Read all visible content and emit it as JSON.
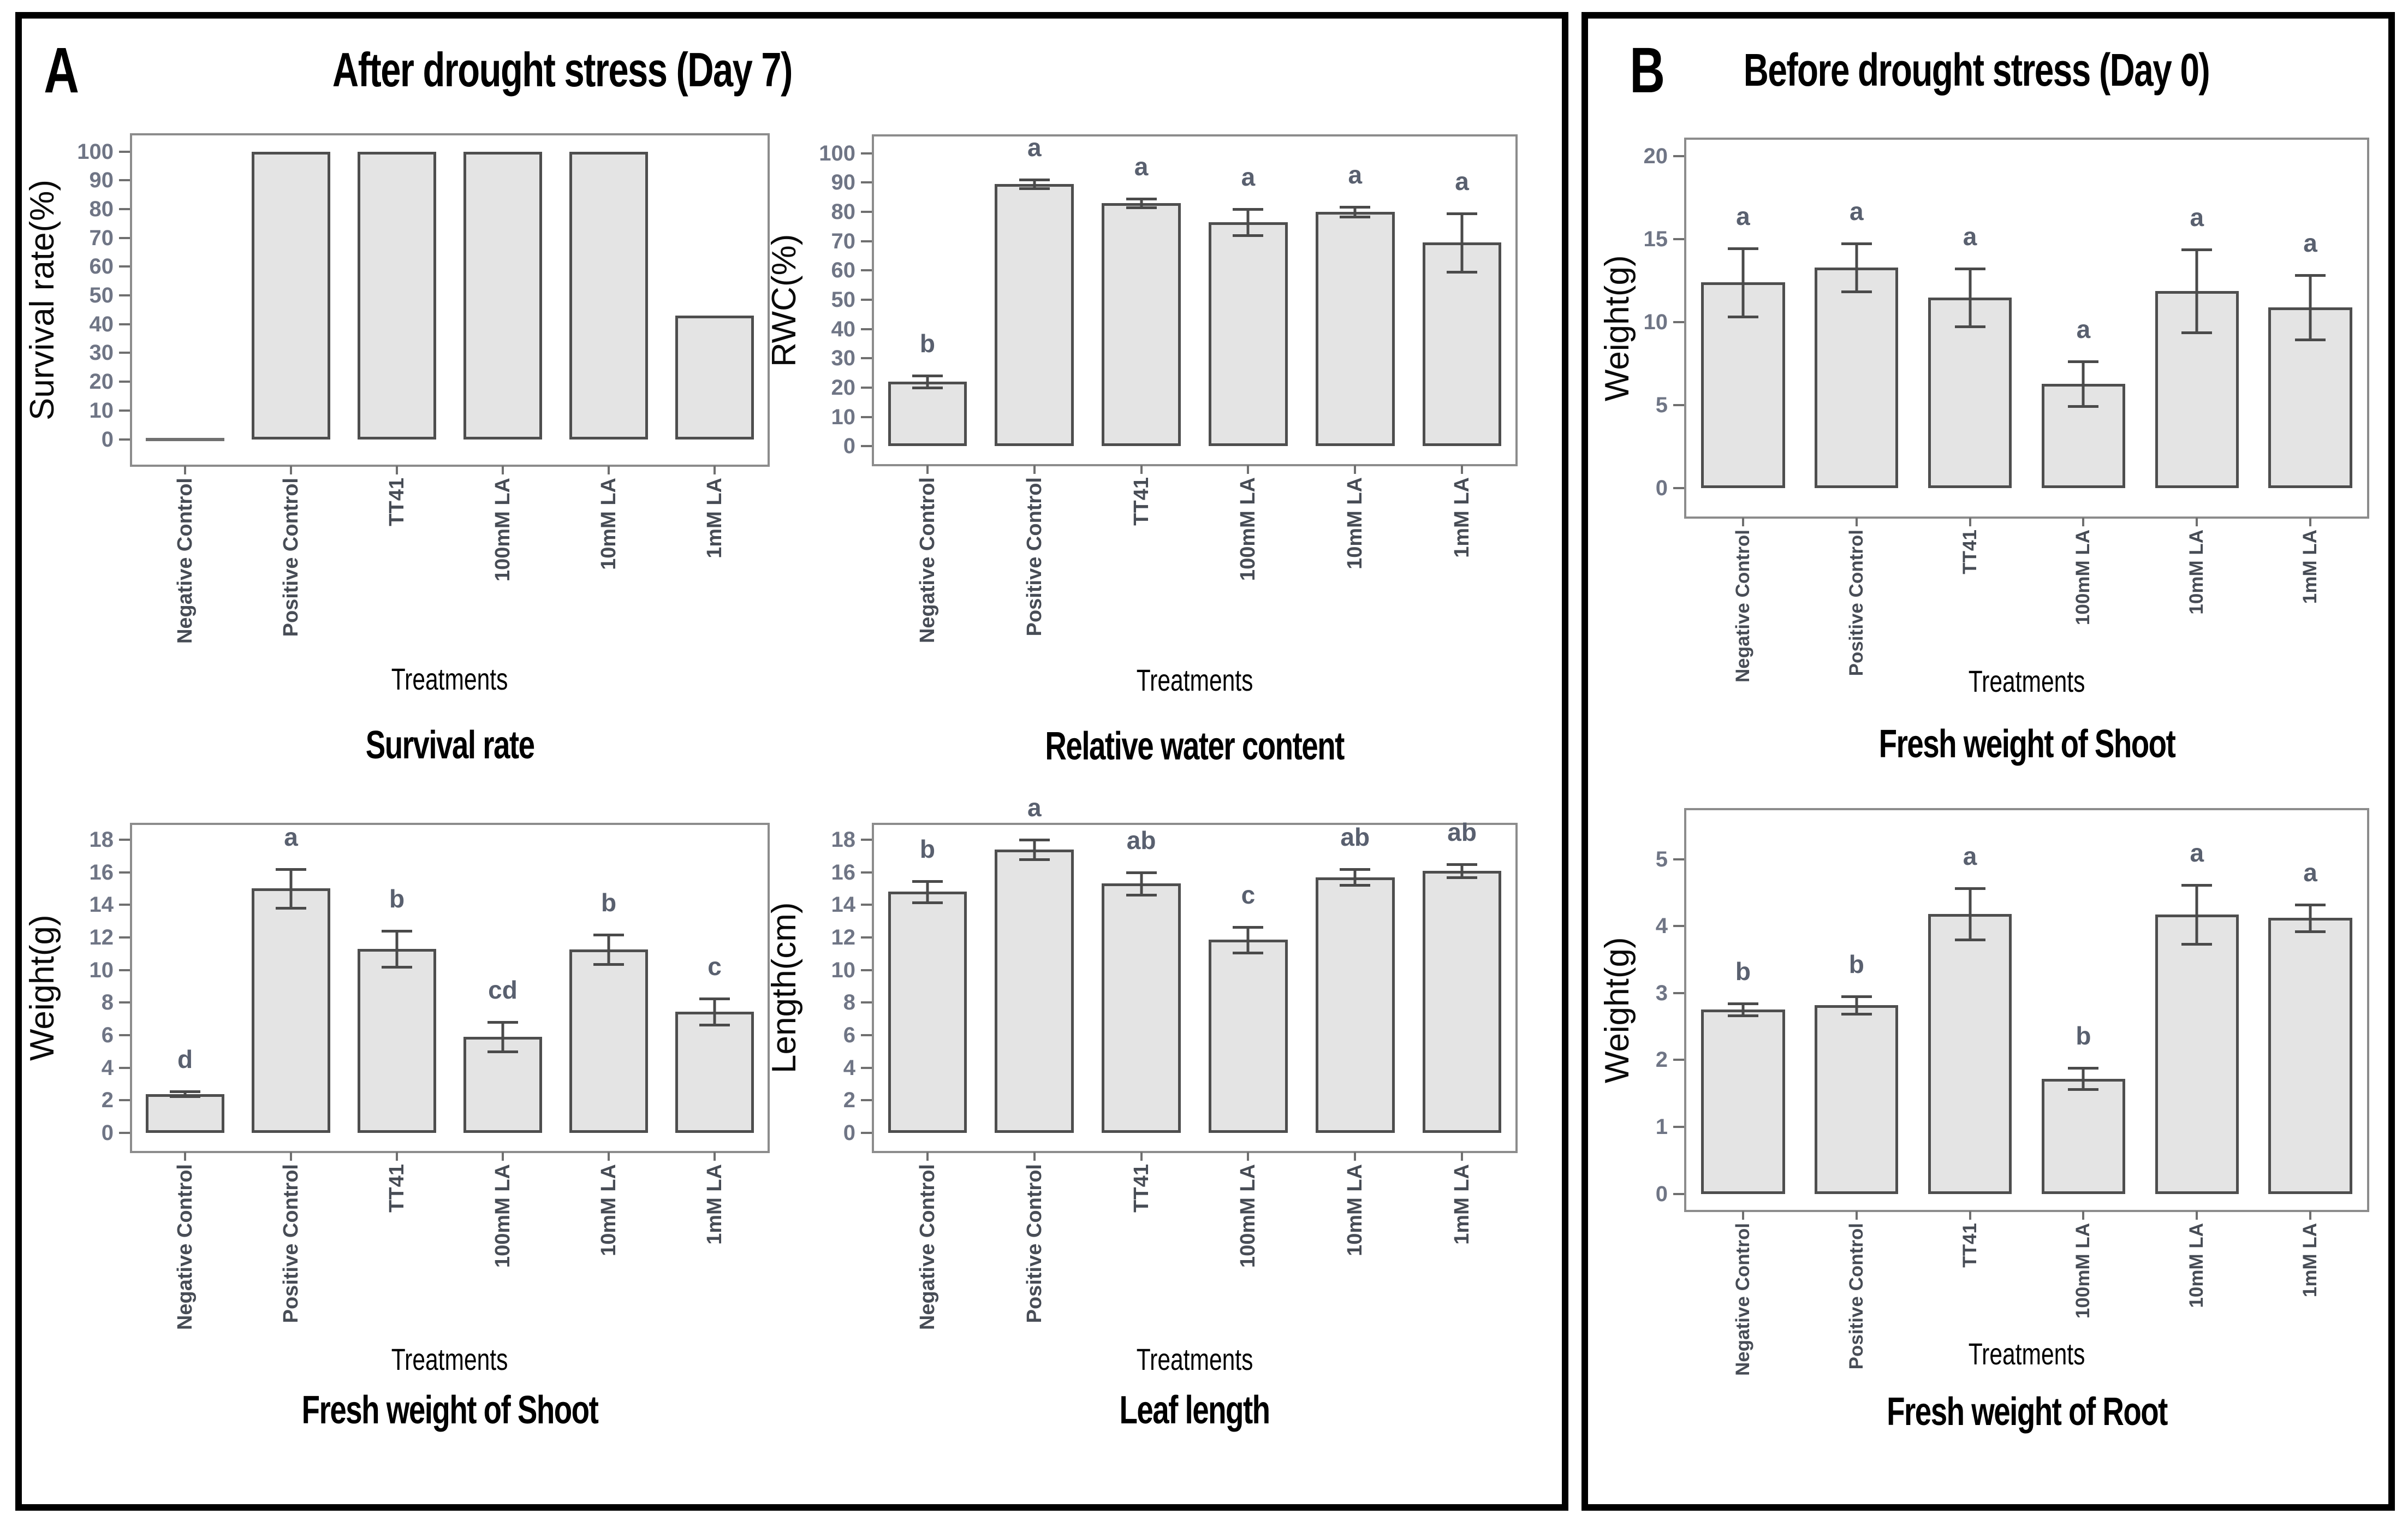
{
  "figure": {
    "background": "#ffffff",
    "panels": [
      {
        "label": "A",
        "title": "After drought stress (Day 7)"
      },
      {
        "label": "B",
        "title": "Before drought stress (Day 0)"
      }
    ]
  },
  "panels": [
    {
      "label": "A",
      "title": "After drought stress (Day 7)"
    },
    {
      "label": "B",
      "title": "Before drought stress (Day 0)"
    }
  ],
  "colors": {
    "bar_fill": "#e4e4e4",
    "bar_border": "#4e4e4e",
    "zero_bar": "#707070",
    "plot_frame": "#8c8c8c",
    "error_bar": "#4a4a4a",
    "y_tick_label": "#6f7585",
    "x_tick_label": "#474c55",
    "tick_mark": "#6f6f6f",
    "sig_letter": "#59606f",
    "panel_border": "#000000"
  },
  "chart_data": [
    {
      "id": "survival-rate",
      "panel": "A",
      "type": "bar",
      "title": "Survival rate",
      "xlabel": "Treatments",
      "ylabel": "Survival rate(%)",
      "categories": [
        "Negative Control",
        "Positive Control",
        "TT41",
        "100mM LA",
        "10mM LA",
        "1mM LA"
      ],
      "values": [
        0,
        100,
        100,
        100,
        100,
        43
      ],
      "errors": null,
      "letters": null,
      "yticks": [
        0,
        10,
        20,
        30,
        40,
        50,
        60,
        70,
        80,
        90,
        100
      ],
      "ylim": [
        -8.8,
        105.6
      ],
      "grid": false,
      "legend": false
    },
    {
      "id": "relative-water-content",
      "panel": "A",
      "type": "bar",
      "title": "Relative water content",
      "xlabel": "Treatments",
      "ylabel": "RWC(%)",
      "categories": [
        "Negative Control",
        "Positive Control",
        "TT41",
        "100mM LA",
        "10mM LA",
        "1mM LA"
      ],
      "values": [
        22,
        89.5,
        83,
        76.5,
        80,
        69.5
      ],
      "errors": [
        2,
        1.5,
        1.5,
        4.5,
        1.7,
        10
      ],
      "letters": [
        "b",
        "a",
        "a",
        "a",
        "a",
        "a"
      ],
      "yticks": [
        0,
        10,
        20,
        30,
        40,
        50,
        60,
        70,
        80,
        90,
        100
      ],
      "ylim": [
        -6.1,
        105.7
      ],
      "grid": false,
      "legend": false
    },
    {
      "id": "fresh-weight-shoot-day7",
      "panel": "A",
      "type": "bar",
      "title": "Fresh weight of Shoot",
      "xlabel": "Treatments",
      "ylabel": "Weight(g)",
      "categories": [
        "Negative Control",
        "Positive Control",
        "TT41",
        "100mM LA",
        "10mM LA",
        "1mM LA"
      ],
      "values": [
        2.4,
        15.0,
        11.3,
        5.9,
        11.25,
        7.45
      ],
      "errors": [
        0.15,
        1.2,
        1.1,
        0.9,
        0.9,
        0.8
      ],
      "letters": [
        "d",
        "a",
        "b",
        "cd",
        "b",
        "c"
      ],
      "yticks": [
        0,
        2,
        4,
        6,
        8,
        10,
        12,
        14,
        16,
        18
      ],
      "ylim": [
        -1.1,
        18.9
      ],
      "grid": false,
      "legend": false
    },
    {
      "id": "leaf-length",
      "panel": "A",
      "type": "bar",
      "title": "Leaf length",
      "xlabel": "Treatments",
      "ylabel": "Length(cm)",
      "categories": [
        "Negative Control",
        "Positive Control",
        "TT41",
        "100mM LA",
        "10mM LA",
        "1mM LA"
      ],
      "values": [
        14.8,
        17.4,
        15.3,
        11.85,
        15.7,
        16.1
      ],
      "errors": [
        0.65,
        0.6,
        0.7,
        0.8,
        0.5,
        0.4
      ],
      "letters": [
        "b",
        "a",
        "ab",
        "c",
        "ab",
        "ab"
      ],
      "yticks": [
        0,
        2,
        4,
        6,
        8,
        10,
        12,
        14,
        16,
        18
      ],
      "ylim": [
        -1.1,
        18.9
      ],
      "grid": false,
      "legend": false
    },
    {
      "id": "fresh-weight-shoot-day0",
      "panel": "B",
      "type": "bar",
      "title": "Fresh weight of Shoot",
      "xlabel": "Treatments",
      "ylabel": "Weight(g)",
      "categories": [
        "Negative Control",
        "Positive Control",
        "TT41",
        "100mM LA",
        "10mM LA",
        "1mM LA"
      ],
      "values": [
        12.4,
        13.3,
        11.5,
        6.3,
        11.9,
        10.9
      ],
      "errors": [
        2.05,
        1.45,
        1.75,
        1.35,
        2.5,
        1.95
      ],
      "letters": [
        "a",
        "a",
        "a",
        "a",
        "a",
        "a"
      ],
      "yticks": [
        0,
        5,
        10,
        15,
        20
      ],
      "ylim": [
        -1.7,
        21.0
      ],
      "grid": false,
      "legend": false
    },
    {
      "id": "fresh-weight-root-day0",
      "panel": "B",
      "type": "bar",
      "title": "Fresh weight of Root",
      "xlabel": "Treatments",
      "ylabel": "Weight(g)",
      "categories": [
        "Negative Control",
        "Positive Control",
        "TT41",
        "100mM LA",
        "10mM LA",
        "1mM LA"
      ],
      "values": [
        2.75,
        2.82,
        4.18,
        1.72,
        4.17,
        4.12
      ],
      "errors": [
        0.09,
        0.13,
        0.38,
        0.16,
        0.44,
        0.2
      ],
      "letters": [
        "b",
        "b",
        "a",
        "b",
        "a",
        "a"
      ],
      "yticks": [
        0,
        1,
        2,
        3,
        4,
        5
      ],
      "ylim": [
        -0.24,
        5.73
      ],
      "grid": false,
      "legend": false
    }
  ]
}
